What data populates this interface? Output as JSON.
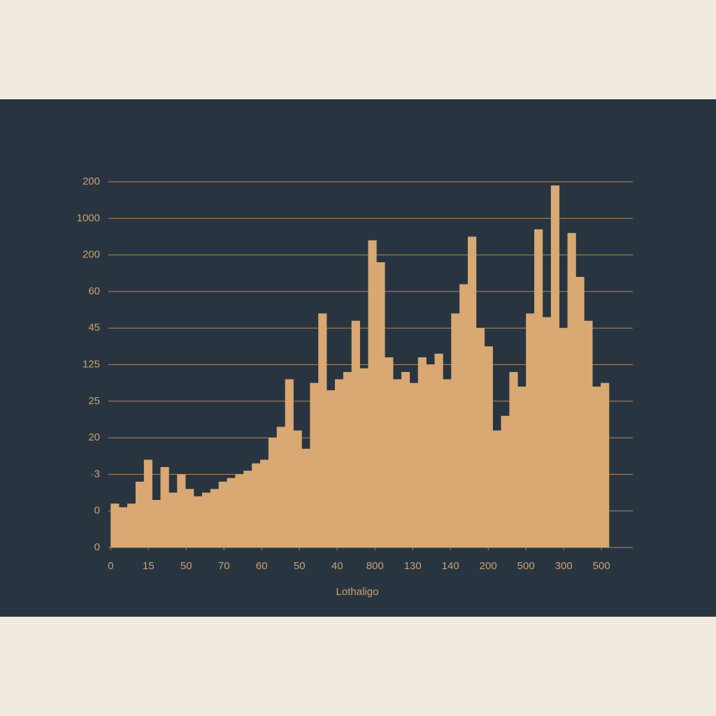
{
  "chart_data": {
    "type": "histogram",
    "x_label": "Lothaligo",
    "color": "#d9a873",
    "grid": true,
    "bins": [
      0,
      0.22,
      0.44,
      0.66,
      0.88,
      1.1,
      1.32,
      1.54,
      1.76,
      1.98,
      2.2,
      2.42,
      2.64,
      2.86,
      3.08,
      3.3,
      3.52,
      3.74,
      3.96,
      4.18,
      4.4,
      4.62,
      4.84,
      5.06,
      5.28,
      5.5,
      5.72,
      5.94,
      6.16,
      6.38,
      6.6,
      6.82,
      7.04,
      7.26,
      7.48,
      7.7,
      7.92,
      8.14,
      8.36,
      8.58,
      8.8,
      9.02,
      9.24,
      9.46,
      9.68,
      9.9,
      10.12,
      10.34,
      10.56,
      10.78,
      11,
      11.22,
      11.44,
      11.66,
      11.88,
      12.1,
      12.32,
      12.54,
      12.76,
      12.98,
      13.2
    ],
    "values": [
      1.2,
      1.1,
      1.2,
      1.8,
      2.4,
      1.3,
      2.2,
      1.5,
      2.0,
      1.6,
      1.4,
      1.5,
      1.6,
      1.8,
      1.9,
      2.0,
      2.1,
      2.3,
      2.4,
      3.0,
      3.3,
      4.6,
      3.2,
      2.7,
      4.5,
      6.4,
      4.3,
      4.6,
      4.8,
      6.2,
      4.9,
      8.4,
      7.8,
      5.2,
      4.6,
      4.8,
      4.5,
      5.2,
      5.0,
      5.3,
      4.6,
      6.4,
      7.2,
      8.5,
      6.0,
      5.5,
      3.2,
      3.6,
      4.8,
      4.4,
      6.4,
      8.7,
      6.3,
      9.9,
      6.0,
      8.6,
      7.4,
      6.2,
      4.4,
      4.5
    ],
    "xlim": [
      -0.06,
      13.83
    ],
    "xticks": [
      0,
      {
        "value": 1,
        "label": "15"
      },
      {
        "value": 2,
        "label": "50"
      },
      {
        "value": 3,
        "label": "70"
      },
      {
        "value": 4,
        "label": "60"
      },
      {
        "value": 5,
        "label": "50"
      },
      {
        "value": 6,
        "label": "40"
      },
      {
        "value": 7,
        "label": "800"
      },
      {
        "value": 8,
        "label": "130"
      },
      {
        "value": 9,
        "label": "140"
      },
      {
        "value": 10,
        "label": "200"
      },
      {
        "value": 11,
        "label": "500"
      },
      {
        "value": 12,
        "label": "300"
      },
      {
        "value": 13,
        "label": "500"
      }
    ],
    "ylim": [
      0,
      10
    ],
    "yticks": [
      0,
      {
        "value": 1,
        "label": "0"
      },
      {
        "value": 2,
        "label": "·3"
      },
      {
        "value": 3,
        "label": "20"
      },
      {
        "value": 4,
        "label": "25"
      },
      {
        "value": 5,
        "label": "125"
      },
      {
        "value": 6,
        "label": "45"
      },
      {
        "value": 7,
        "label": "60"
      },
      {
        "value": 8,
        "label": "200"
      },
      {
        "value": 9,
        "label": "1000"
      },
      {
        "value": 10,
        "label": "200"
      }
    ]
  }
}
